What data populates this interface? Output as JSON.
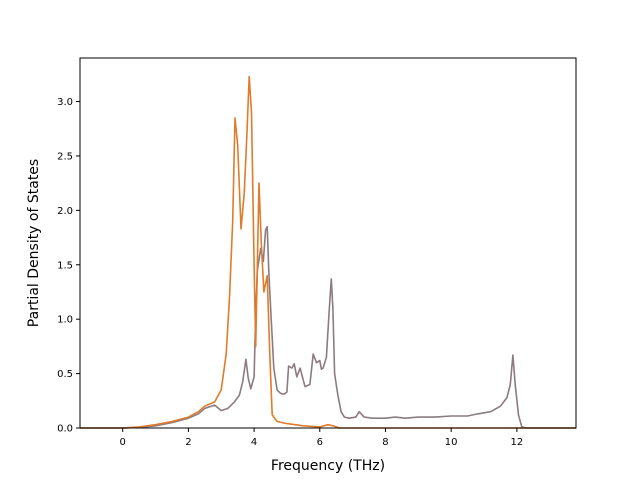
{
  "chart_data": {
    "type": "line",
    "title": "",
    "xlabel": "Frequency (THz)",
    "ylabel": "Partial Density of States",
    "xlim": [
      -1.3,
      13.8
    ],
    "ylim": [
      0.0,
      3.4
    ],
    "xticks": [
      0,
      2,
      4,
      6,
      8,
      10,
      12
    ],
    "yticks": [
      0.0,
      0.5,
      1.0,
      1.5,
      2.0,
      2.5,
      3.0
    ],
    "xtick_labels": [
      "0",
      "2",
      "4",
      "6",
      "8",
      "10",
      "12"
    ],
    "ytick_labels": [
      "0.0",
      "0.5",
      "1.0",
      "1.5",
      "2.0",
      "2.5",
      "3.0"
    ],
    "grid": false,
    "legend": "none",
    "series": [
      {
        "color": "#8c7b80",
        "points": [
          [
            -1.3,
            0.0
          ],
          [
            0.0,
            0.0
          ],
          [
            0.5,
            0.005
          ],
          [
            1.0,
            0.02
          ],
          [
            1.5,
            0.05
          ],
          [
            2.0,
            0.09
          ],
          [
            2.3,
            0.13
          ],
          [
            2.5,
            0.18
          ],
          [
            2.8,
            0.21
          ],
          [
            3.0,
            0.16
          ],
          [
            3.2,
            0.18
          ],
          [
            3.4,
            0.24
          ],
          [
            3.55,
            0.3
          ],
          [
            3.65,
            0.42
          ],
          [
            3.75,
            0.63
          ],
          [
            3.82,
            0.46
          ],
          [
            3.9,
            0.36
          ],
          [
            4.0,
            0.47
          ],
          [
            4.05,
            1.05
          ],
          [
            4.1,
            1.45
          ],
          [
            4.2,
            1.65
          ],
          [
            4.28,
            1.53
          ],
          [
            4.35,
            1.82
          ],
          [
            4.4,
            1.85
          ],
          [
            4.45,
            1.42
          ],
          [
            4.52,
            1.0
          ],
          [
            4.6,
            0.55
          ],
          [
            4.7,
            0.35
          ],
          [
            4.8,
            0.32
          ],
          [
            4.9,
            0.31
          ],
          [
            5.0,
            0.33
          ],
          [
            5.05,
            0.57
          ],
          [
            5.15,
            0.55
          ],
          [
            5.22,
            0.59
          ],
          [
            5.3,
            0.47
          ],
          [
            5.4,
            0.55
          ],
          [
            5.55,
            0.38
          ],
          [
            5.7,
            0.4
          ],
          [
            5.8,
            0.68
          ],
          [
            5.9,
            0.6
          ],
          [
            6.0,
            0.62
          ],
          [
            6.05,
            0.54
          ],
          [
            6.1,
            0.55
          ],
          [
            6.2,
            0.65
          ],
          [
            6.28,
            1.05
          ],
          [
            6.35,
            1.37
          ],
          [
            6.4,
            1.1
          ],
          [
            6.45,
            0.5
          ],
          [
            6.55,
            0.3
          ],
          [
            6.65,
            0.15
          ],
          [
            6.75,
            0.1
          ],
          [
            6.9,
            0.09
          ],
          [
            7.1,
            0.1
          ],
          [
            7.2,
            0.15
          ],
          [
            7.35,
            0.1
          ],
          [
            7.6,
            0.09
          ],
          [
            8.0,
            0.09
          ],
          [
            8.3,
            0.1
          ],
          [
            8.6,
            0.09
          ],
          [
            9.0,
            0.1
          ],
          [
            9.5,
            0.1
          ],
          [
            10.0,
            0.11
          ],
          [
            10.5,
            0.11
          ],
          [
            10.8,
            0.13
          ],
          [
            11.2,
            0.15
          ],
          [
            11.5,
            0.2
          ],
          [
            11.7,
            0.28
          ],
          [
            11.8,
            0.4
          ],
          [
            11.88,
            0.67
          ],
          [
            11.95,
            0.4
          ],
          [
            12.05,
            0.12
          ],
          [
            12.15,
            0.01
          ],
          [
            12.3,
            0.0
          ],
          [
            13.8,
            0.0
          ]
        ]
      },
      {
        "color": "#e07b2a",
        "points": [
          [
            -1.3,
            0.0
          ],
          [
            0.0,
            0.0
          ],
          [
            0.5,
            0.01
          ],
          [
            1.0,
            0.03
          ],
          [
            1.5,
            0.06
          ],
          [
            2.0,
            0.1
          ],
          [
            2.3,
            0.15
          ],
          [
            2.5,
            0.2
          ],
          [
            2.8,
            0.24
          ],
          [
            3.0,
            0.35
          ],
          [
            3.15,
            0.68
          ],
          [
            3.25,
            1.2
          ],
          [
            3.35,
            1.9
          ],
          [
            3.42,
            2.85
          ],
          [
            3.5,
            2.6
          ],
          [
            3.6,
            1.83
          ],
          [
            3.7,
            2.15
          ],
          [
            3.78,
            2.7
          ],
          [
            3.85,
            3.23
          ],
          [
            3.92,
            2.9
          ],
          [
            4.0,
            1.5
          ],
          [
            4.05,
            0.75
          ],
          [
            4.15,
            2.25
          ],
          [
            4.22,
            1.7
          ],
          [
            4.3,
            1.25
          ],
          [
            4.4,
            1.4
          ],
          [
            4.48,
            0.65
          ],
          [
            4.55,
            0.12
          ],
          [
            4.7,
            0.06
          ],
          [
            5.0,
            0.04
          ],
          [
            5.5,
            0.02
          ],
          [
            6.0,
            0.01
          ],
          [
            6.25,
            0.03
          ],
          [
            6.4,
            0.02
          ],
          [
            6.6,
            0.0
          ],
          [
            13.8,
            0.0
          ]
        ]
      }
    ]
  }
}
